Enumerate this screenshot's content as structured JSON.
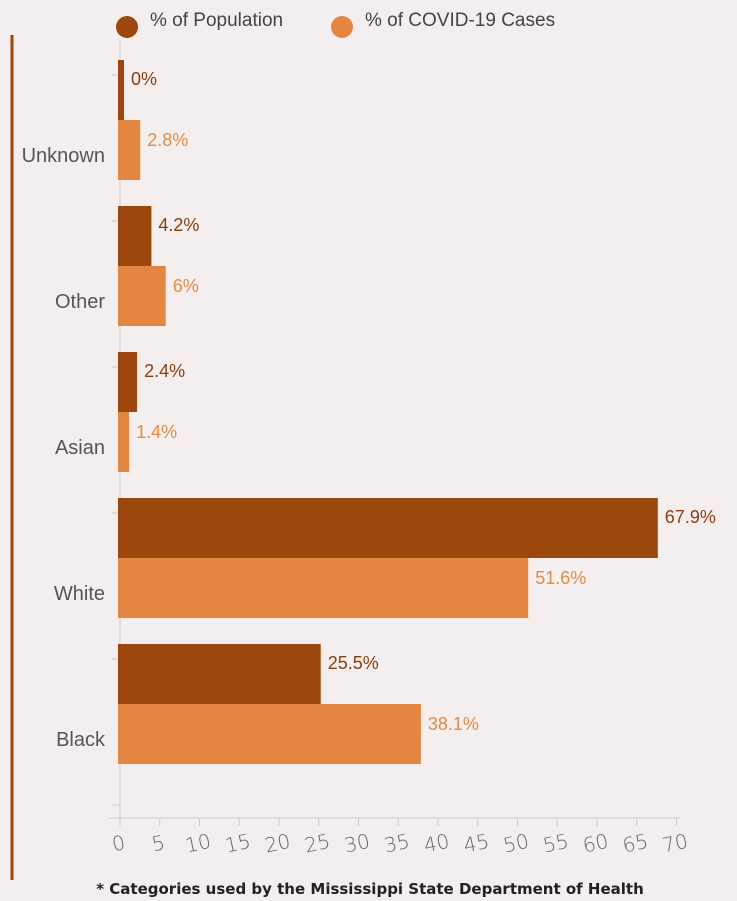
{
  "chart_data": {
    "type": "bar",
    "orientation": "horizontal",
    "categories": [
      "Unknown",
      "Other",
      "Asian",
      "White",
      "Black"
    ],
    "series": [
      {
        "name": "% of Population",
        "color": "#9b470e",
        "values": [
          0,
          4.2,
          2.4,
          67.9,
          25.5
        ],
        "labels": [
          "0%",
          "4.2%",
          "2.4%",
          "67.9%",
          "25.5%"
        ]
      },
      {
        "name": "% of COVID-19 Cases",
        "color": "#e38642",
        "values": [
          2.8,
          6,
          1.4,
          51.6,
          38.1
        ],
        "labels": [
          "2.8%",
          "6%",
          "1.4%",
          "51.6%",
          "38.1%"
        ]
      }
    ],
    "xticks": [
      "0",
      "5",
      "10",
      "15",
      "20",
      "25",
      "30",
      "35",
      "40",
      "45",
      "50",
      "55",
      "60",
      "65",
      "70"
    ],
    "xlim": [
      0,
      72
    ],
    "legend_position": "top",
    "footnote": "* Categories used by the Mississippi State Department of Health"
  }
}
